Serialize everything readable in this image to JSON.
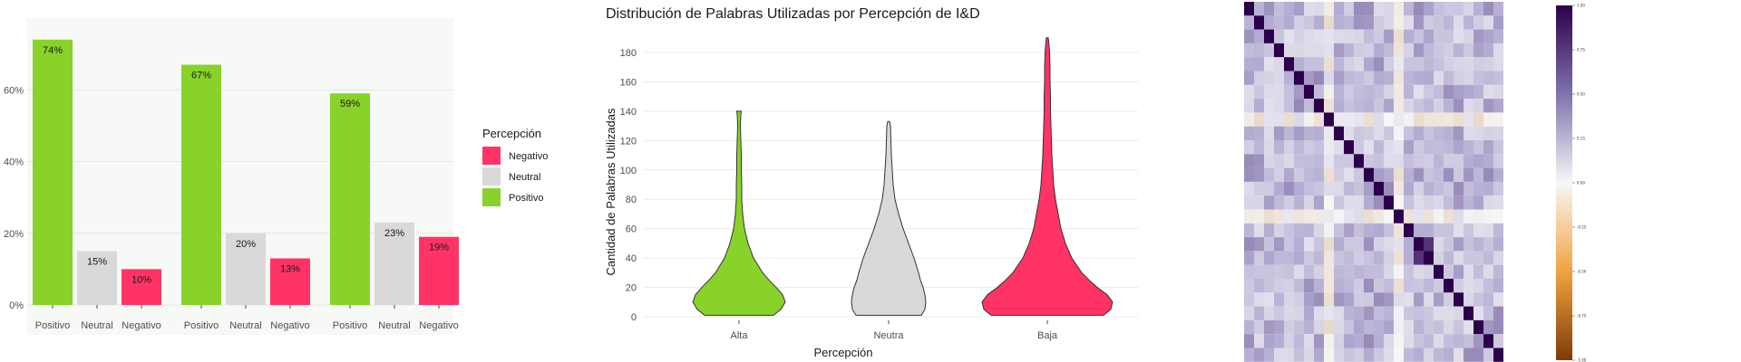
{
  "chart_data": [
    {
      "type": "bar",
      "ylim": [
        0,
        0.8
      ],
      "y_ticks": [
        "0%",
        "20%",
        "40%",
        "60%"
      ],
      "categories": [
        "Positivo",
        "Neutral",
        "Negativo"
      ],
      "groups": [
        {
          "values": [
            0.74,
            0.15,
            0.1
          ],
          "labels": [
            "74%",
            "15%",
            "10%"
          ]
        },
        {
          "values": [
            0.67,
            0.2,
            0.13
          ],
          "labels": [
            "67%",
            "20%",
            "13%"
          ]
        },
        {
          "values": [
            0.59,
            0.23,
            0.19
          ],
          "labels": [
            "59%",
            "23%",
            "19%"
          ]
        }
      ],
      "legend": {
        "title": "Percepción",
        "placement": "right",
        "items": [
          {
            "label": "Negativo",
            "color": "#ff3366"
          },
          {
            "label": "Neutral",
            "color": "#d9d9d9"
          },
          {
            "label": "Positivo",
            "color": "#88d22a"
          }
        ]
      },
      "colors": {
        "Positivo": "#88d22a",
        "Neutral": "#d9d9d9",
        "Negativo": "#ff3366"
      },
      "grid": true
    },
    {
      "type": "violin",
      "title": "Distribución de Palabras Utilizadas por Percepción de I&D",
      "xlabel": "Percepción",
      "ylabel": "Cantidad de Palabras Utilizadas",
      "ylim": [
        0,
        190
      ],
      "y_ticks": [
        0,
        20,
        40,
        60,
        80,
        100,
        120,
        140,
        160,
        180
      ],
      "categories": [
        "Alta",
        "Neutra",
        "Baja"
      ],
      "colors": [
        "#88d22a",
        "#d9d9d9",
        "#ff3366"
      ],
      "ranges": [
        [
          1,
          140
        ],
        [
          1,
          133
        ],
        [
          1,
          190
        ]
      ],
      "grid": true
    },
    {
      "type": "heatmap",
      "colorbar_ticks": [
        "1.00",
        "0.75",
        "0.50",
        "0.25",
        "0.00",
        "-0.25",
        "-0.50",
        "-0.75",
        "-1.00"
      ],
      "cmap": [
        "#7f3b08",
        "#f7f7f7",
        "#2d004b"
      ]
    }
  ]
}
